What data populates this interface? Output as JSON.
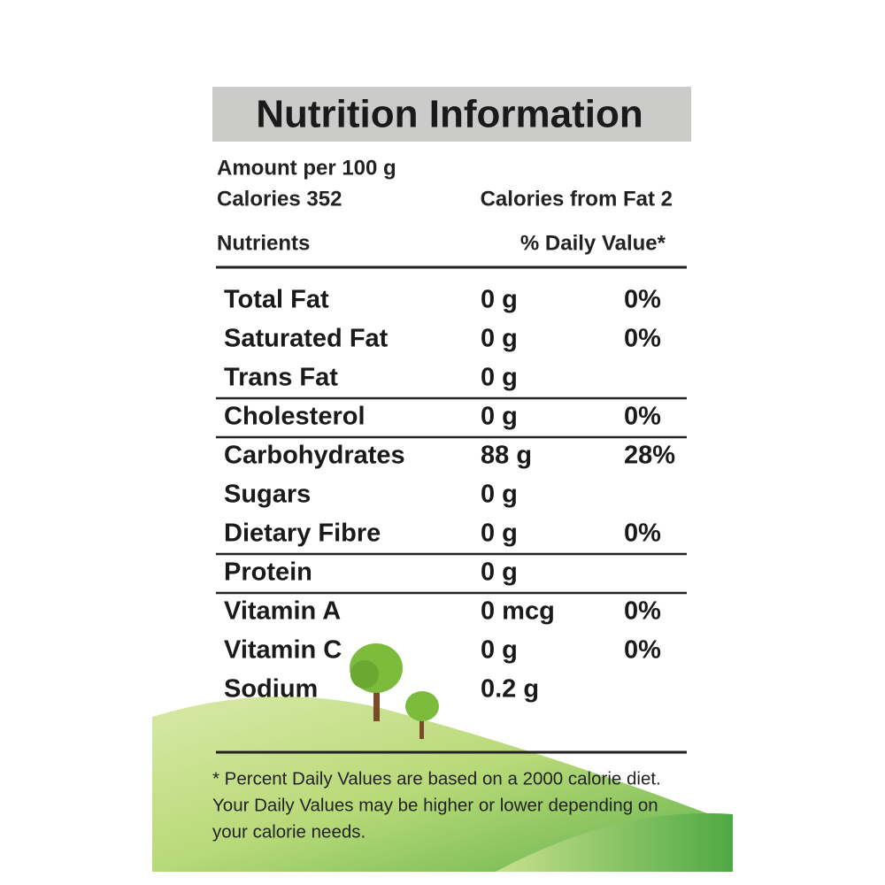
{
  "header": {
    "title": "Nutrition Information",
    "amount": "Amount per 100 g",
    "calories": "Calories 352",
    "calories_from_fat": "Calories from Fat 2"
  },
  "table": {
    "columns": [
      "Nutrients",
      "% Daily Value*"
    ],
    "groups": [
      [
        {
          "name": "Total Fat",
          "amount": "0 g",
          "dv": "0%"
        },
        {
          "name": "Saturated Fat",
          "amount": "0 g",
          "dv": "0%"
        },
        {
          "name": "Trans Fat",
          "amount": "0 g"
        }
      ],
      [
        {
          "name": "Cholesterol",
          "amount": "0 g",
          "dv": "0%"
        }
      ],
      [
        {
          "name": "Carbohydrates",
          "amount": "88 g",
          "dv": "28%"
        },
        {
          "name": "Sugars",
          "amount": "0 g"
        },
        {
          "name": "Dietary Fibre",
          "amount": "0 g",
          "dv": "0%"
        }
      ],
      [
        {
          "name": "Protein",
          "amount": "0 g"
        }
      ],
      [
        {
          "name": "Vitamin A",
          "amount": "0 mcg",
          "dv": "0%"
        },
        {
          "name": "Vitamin C",
          "amount": "0 g",
          "dv": "0%"
        },
        {
          "name": "Sodium",
          "amount": "0.2 g"
        }
      ]
    ]
  },
  "footnote": [
    "* Percent Daily Values are based on a 2000 calorie diet.",
    "Your Daily Values may be higher or lower depending on",
    "your calorie needs."
  ]
}
